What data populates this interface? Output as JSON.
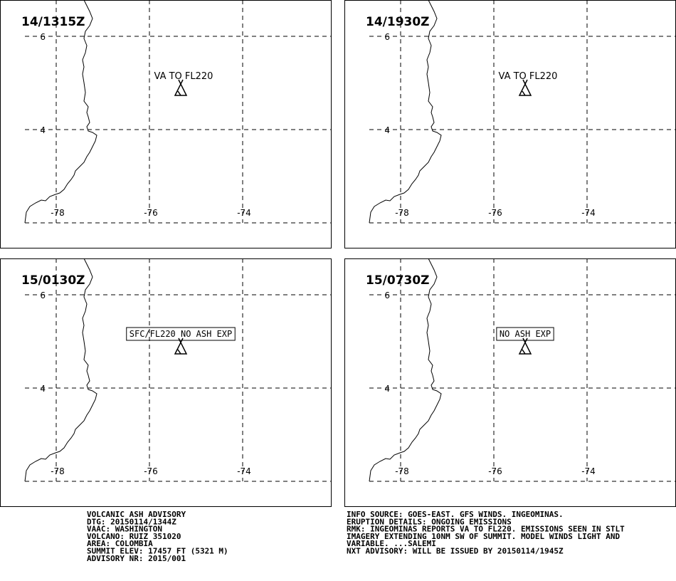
{
  "panels": [
    {
      "time": "14/1315Z",
      "label": "VA TO FL220",
      "label_boxed": false
    },
    {
      "time": "14/1930Z",
      "label": "VA TO FL220",
      "label_boxed": false
    },
    {
      "time": "15/0130Z",
      "label": "SFC/FL220 NO ASH EXP",
      "label_boxed": true
    },
    {
      "time": "15/0730Z",
      "label": "NO ASH EXP",
      "label_boxed": true
    }
  ],
  "grid": {
    "lat_labels": [
      6,
      4
    ],
    "lon_labels": [
      -78,
      -76,
      -74
    ]
  },
  "advisory_left": [
    "VOLCANIC ASH ADVISORY",
    "DTG: 20150114/1344Z",
    "VAAC: WASHINGTON",
    "VOLCANO: RUIZ 351020",
    "AREA: COLOMBIA",
    "SUMMIT ELEV: 17457 FT (5321 M)",
    "ADVISORY NR: 2015/001"
  ],
  "advisory_right": [
    "INFO SOURCE: GOES-EAST. GFS WINDS. INGEOMINAS.",
    "ERUPTION DETAILS: ONGOING EMISSIONS",
    "RMK: INGEOMINAS REPORTS VA TO FL220. EMISSIONS SEEN IN STLT",
    "IMAGERY EXTENDING 10NM SW OF SUMMIT. MODEL WINDS LIGHT AND",
    "VARIABLE. ...SALEMI",
    "NXT ADVISORY: WILL BE ISSUED BY 20150114/1945Z"
  ]
}
